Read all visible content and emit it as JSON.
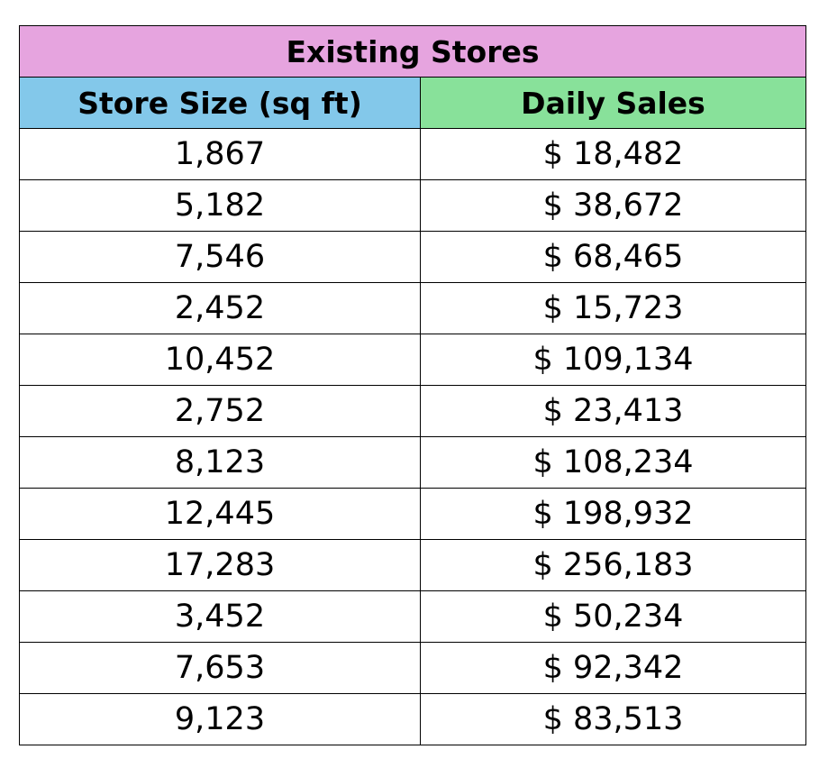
{
  "table": {
    "title": "Existing Stores",
    "title_color": "#e6a4df",
    "headers": [
      {
        "label": "Store Size (sq ft)",
        "color": "#83c8ea"
      },
      {
        "label": "Daily Sales",
        "color": "#88e19a"
      }
    ],
    "rows": [
      [
        "1,867",
        "$ 18,482"
      ],
      [
        "5,182",
        "$ 38,672"
      ],
      [
        "7,546",
        "$ 68,465"
      ],
      [
        "2,452",
        "$ 15,723"
      ],
      [
        "10,452",
        "$ 109,134"
      ],
      [
        "2,752",
        "$ 23,413"
      ],
      [
        "8,123",
        "$ 108,234"
      ],
      [
        "12,445",
        "$ 198,932"
      ],
      [
        "17,283",
        "$ 256,183"
      ],
      [
        "3,452",
        "$ 50,234"
      ],
      [
        "7,653",
        "$ 92,342"
      ],
      [
        "9,123",
        "$ 83,513"
      ]
    ]
  }
}
